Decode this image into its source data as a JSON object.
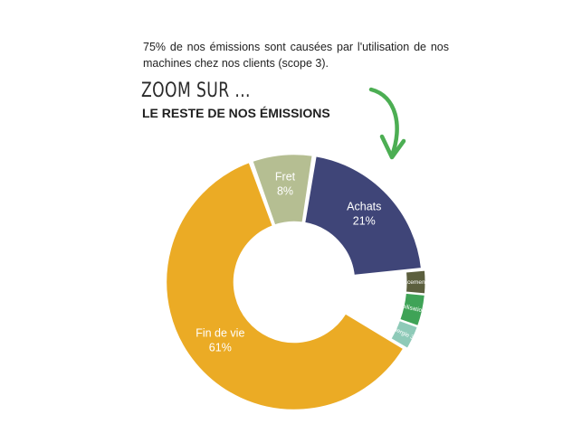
{
  "intro_text": "75% de nos émissions sont causées par l'utilisation de nos machines chez nos clients (scope 3).",
  "heading": {
    "zoom": "ZOOM SUR ...",
    "subtitle": "LE RESTE DE NOS ÉMISSIONS"
  },
  "colors": {
    "arrow": "#4cae53"
  },
  "chart_data": {
    "type": "pie",
    "title": "",
    "unit": "%",
    "categories": [
      "Achats",
      "Déplacements",
      "Immobilisations",
      "Energie",
      "Fin de vie",
      "Fret"
    ],
    "values": [
      21,
      3,
      4,
      3,
      61,
      8
    ],
    "labels": [
      "21%",
      "3%",
      "4%",
      "3%",
      "61%",
      "8%"
    ],
    "colors": [
      "#3f4578",
      "#5c5f3e",
      "#3fa357",
      "#8ecab8",
      "#ebab25",
      "#b5be92"
    ],
    "donut": true
  }
}
